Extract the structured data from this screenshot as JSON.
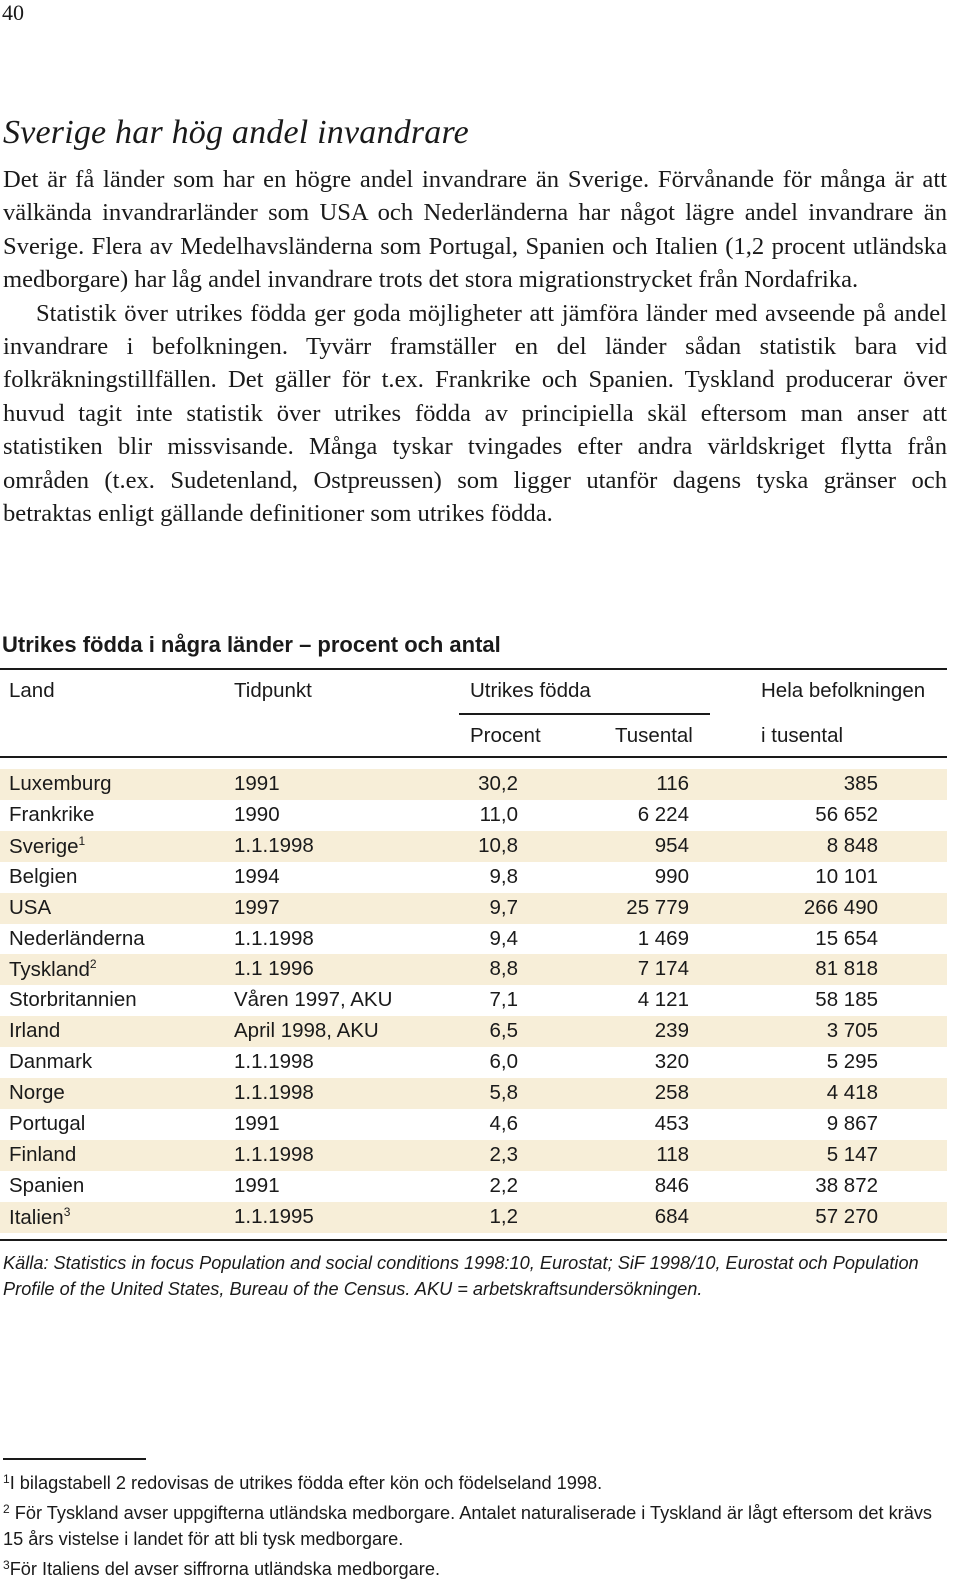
{
  "page": {
    "number": "40"
  },
  "heading": "Sverige har hög andel invandrare",
  "paragraphs": [
    "Det är få länder som har en högre andel invandrare än Sverige. Förvånande för många är att välkända invandrarländer som USA och Nederländerna har något lägre andel invandrare än Sverige. Flera av Medelhavsländerna som Portugal, Spanien och Italien (1,2 procent utländska medborgare) har låg andel invandrare trots det stora migrationstrycket från Nordafrika.",
    "Statistik över utrikes födda ger goda möjligheter att jämföra länder med avseende på andel invandrare i befolkningen. Tyvärr framställer en del länder sådan statistik bara vid folkräkningstillfällen. Det gäller för t.ex. Frankrike och Spanien. Tyskland producerar över huvud tagit inte statistik över utrikes födda av principiella skäl eftersom man anser att statistiken blir missvisande. Många tyskar tvingades efter andra världskriget flytta från områden (t.ex. Sudetenland, Ostpreussen) som ligger utanför dagens tyska gränser och betraktas enligt gällande definitioner som utrikes födda."
  ],
  "table": {
    "title": "Utrikes födda i några länder – procent och antal",
    "headers": {
      "land": "Land",
      "tidpunkt": "Tidpunkt",
      "utrikes": "Utrikes födda",
      "hela": "Hela befolkningen",
      "procent": "Procent",
      "tusental": "Tusental",
      "i_tusental": "i tusental"
    },
    "shade_color": "#f7eed8",
    "rows": [
      {
        "land": "Luxemburg",
        "sup": "",
        "tidpunkt": "1991",
        "procent": "30,2",
        "tusental": "116",
        "hela": "385"
      },
      {
        "land": "Frankrike",
        "sup": "",
        "tidpunkt": "1990",
        "procent": "11,0",
        "tusental": "6 224",
        "hela": "56 652"
      },
      {
        "land": "Sverige",
        "sup": "1",
        "tidpunkt": "1.1.1998",
        "procent": "10,8",
        "tusental": "954",
        "hela": "8 848"
      },
      {
        "land": "Belgien",
        "sup": "",
        "tidpunkt": "1994",
        "procent": "9,8",
        "tusental": "990",
        "hela": "10 101"
      },
      {
        "land": "USA",
        "sup": "",
        "tidpunkt": "1997",
        "procent": "9,7",
        "tusental": "25 779",
        "hela": "266 490"
      },
      {
        "land": "Nederländerna",
        "sup": "",
        "tidpunkt": "1.1.1998",
        "procent": "9,4",
        "tusental": "1 469",
        "hela": "15 654"
      },
      {
        "land": "Tyskland",
        "sup": "2",
        "tidpunkt": "1.1 1996",
        "procent": "8,8",
        "tusental": "7 174",
        "hela": "81 818"
      },
      {
        "land": "Storbritannien",
        "sup": "",
        "tidpunkt": "Våren 1997, AKU",
        "procent": "7,1",
        "tusental": "4 121",
        "hela": "58 185"
      },
      {
        "land": "Irland",
        "sup": "",
        "tidpunkt": "April 1998, AKU",
        "procent": "6,5",
        "tusental": "239",
        "hela": "3 705"
      },
      {
        "land": "Danmark",
        "sup": "",
        "tidpunkt": "1.1.1998",
        "procent": "6,0",
        "tusental": "320",
        "hela": "5 295"
      },
      {
        "land": "Norge",
        "sup": "",
        "tidpunkt": "1.1.1998",
        "procent": "5,8",
        "tusental": "258",
        "hela": "4 418"
      },
      {
        "land": "Portugal",
        "sup": "",
        "tidpunkt": "1991",
        "procent": "4,6",
        "tusental": "453",
        "hela": "9 867"
      },
      {
        "land": "Finland",
        "sup": "",
        "tidpunkt": "1.1.1998",
        "procent": "2,3",
        "tusental": "118",
        "hela": "5 147"
      },
      {
        "land": "Spanien",
        "sup": "",
        "tidpunkt": "1991",
        "procent": "2,2",
        "tusental": "846",
        "hela": "38 872"
      },
      {
        "land": "Italien",
        "sup": "3",
        "tidpunkt": "1.1.1995",
        "procent": "1,2",
        "tusental": "684",
        "hela": "57 270"
      }
    ]
  },
  "source": "Källa: Statistics in focus Population and social conditions 1998:10, Eurostat; SiF 1998/10, Eurostat och Population Profile of the United States, Bureau of the Census. AKU = arbetskraftsundersökningen.",
  "footnotes": [
    {
      "mark": "1",
      "text": "I bilagstabell 2 redovisas de utrikes födda efter kön och födelseland 1998."
    },
    {
      "mark": "2",
      "text": "För Tyskland avser uppgifterna utländska medborgare. Antalet naturaliserade i Tyskland är lågt eftersom det krävs 15 års vistelse i landet för att bli tysk medborgare."
    },
    {
      "mark": "3",
      "text": "För Italiens del avser siffrorna utländska medborgare."
    }
  ]
}
